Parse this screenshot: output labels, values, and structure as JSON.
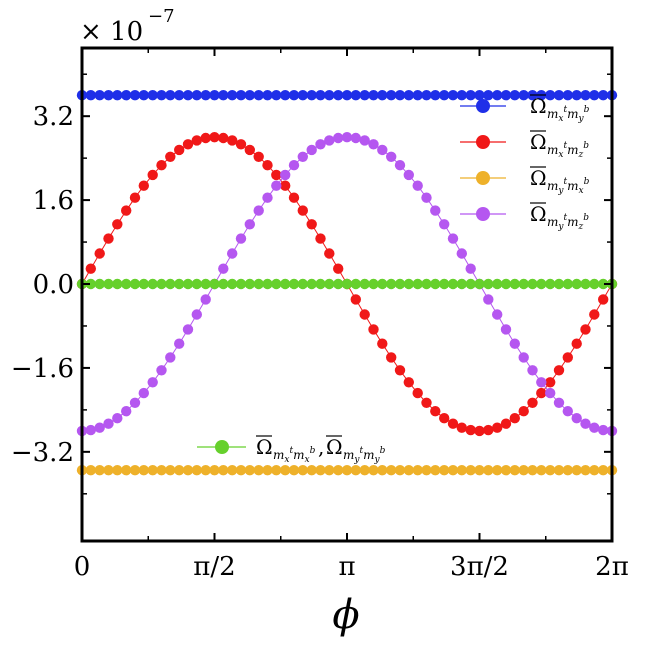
{
  "chart_data": {
    "type": "scatter",
    "xlabel": "ϕ",
    "ylabel": "",
    "exponent_label": "× 10",
    "exponent_power": "−7",
    "xlim": [
      0,
      6.2832
    ],
    "ylim": [
      -4.9,
      4.5
    ],
    "x_ticks": [
      {
        "value": 0,
        "label": "0"
      },
      {
        "value": 1.5708,
        "label": "π/2"
      },
      {
        "value": 3.1416,
        "label": "π"
      },
      {
        "value": 4.7124,
        "label": "3π/2"
      },
      {
        "value": 6.2832,
        "label": "2π"
      }
    ],
    "y_ticks": [
      {
        "value": 3.2,
        "label": "3.2"
      },
      {
        "value": 1.6,
        "label": "1.6"
      },
      {
        "value": 0.0,
        "label": "0.0"
      },
      {
        "value": -1.6,
        "label": "−1.6"
      },
      {
        "value": -3.2,
        "label": "−3.2"
      }
    ],
    "n_points": 60,
    "series": [
      {
        "key": "blue",
        "name": "Ω̄",
        "sub": "m_x^t m_y^b",
        "color": "#1f2fe8",
        "formula": "constant",
        "amplitude": 3.6,
        "line": true
      },
      {
        "key": "red",
        "name": "Ω̄",
        "sub": "m_x^t m_z^b",
        "color": "#f01818",
        "formula": "sin",
        "amplitude": 2.8,
        "line": true
      },
      {
        "key": "orange",
        "name": "Ω̄",
        "sub": "m_y^t m_x^b",
        "color": "#eeb12a",
        "formula": "constant",
        "amplitude": -3.55,
        "line": true
      },
      {
        "key": "purple",
        "name": "Ω̄",
        "sub": "m_y^t m_z^b",
        "color": "#b557f0",
        "formula": "neg_cos",
        "amplitude": 2.8,
        "line": true
      },
      {
        "key": "green",
        "name": "Ω̄",
        "sub": "m_x^t m_x^b, Ω̄ m_y^t m_y^b",
        "color": "#66d02c",
        "formula": "constant",
        "amplitude": 0.0,
        "line": true
      }
    ],
    "legend_top_right": [
      {
        "series": "blue",
        "base": "Ω",
        "sub": "m",
        "sub_parts": [
          "m",
          "x",
          "t",
          "m",
          "y",
          "b"
        ]
      },
      {
        "series": "red",
        "base": "Ω",
        "sub_parts": [
          "m",
          "x",
          "t",
          "m",
          "z",
          "b"
        ]
      },
      {
        "series": "orange",
        "base": "Ω",
        "sub_parts": [
          "m",
          "y",
          "t",
          "m",
          "x",
          "b"
        ]
      },
      {
        "series": "purple",
        "base": "Ω",
        "sub_parts": [
          "m",
          "y",
          "t",
          "m",
          "z",
          "b"
        ]
      }
    ],
    "legend_lower_left": {
      "series": "green",
      "parts": [
        {
          "base": "Ω",
          "sub_parts": [
            "m",
            "x",
            "t",
            "m",
            "x",
            "b"
          ]
        },
        {
          "base": "Ω",
          "sub_parts": [
            "m",
            "y",
            "t",
            "m",
            "y",
            "b"
          ]
        }
      ]
    },
    "grid": false
  }
}
